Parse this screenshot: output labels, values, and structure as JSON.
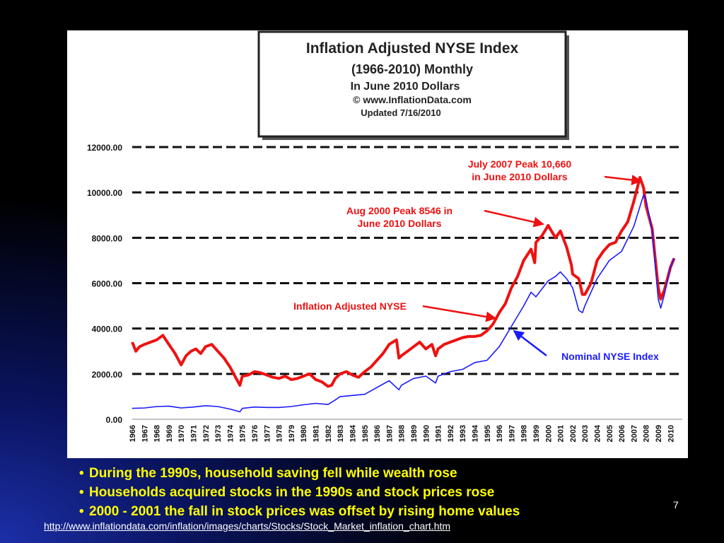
{
  "chart_data": {
    "type": "line",
    "title_lines": [
      "Inflation Adjusted NYSE Index",
      "(1966-2010) Monthly",
      "In June 2010 Dollars",
      "© www.InflationData.com",
      "Updated 7/16/2010"
    ],
    "ylim": [
      0,
      12000
    ],
    "y_ticks": [
      "0.00",
      "2000.00",
      "4000.00",
      "6000.00",
      "8000.00",
      "10000.00",
      "12000.00"
    ],
    "x_ticks": [
      "1966",
      "1967",
      "1968",
      "1969",
      "1970",
      "1971",
      "1972",
      "1973",
      "1974",
      "1975",
      "1976",
      "1977",
      "1978",
      "1979",
      "1980",
      "1981",
      "1982",
      "1983",
      "1984",
      "1985",
      "1986",
      "1987",
      "1988",
      "1989",
      "1990",
      "1991",
      "1992",
      "1993",
      "1994",
      "1995",
      "1996",
      "1997",
      "1998",
      "1999",
      "2000",
      "2001",
      "2002",
      "2003",
      "2004",
      "2005",
      "2006",
      "2007",
      "2008",
      "2009",
      "2010"
    ],
    "grid": "horizontal dashed",
    "series": [
      {
        "name": "Inflation Adjusted NYSE",
        "color": "#ee1111",
        "x": [
          1966,
          1966.3,
          1966.6,
          1967,
          1967.5,
          1968,
          1968.5,
          1969,
          1969.5,
          1970,
          1970.4,
          1970.8,
          1971.2,
          1971.6,
          1972,
          1972.5,
          1973,
          1973.5,
          1974,
          1974.5,
          1974.8,
          1975,
          1975.5,
          1976,
          1976.5,
          1977,
          1977.5,
          1978,
          1978.5,
          1979,
          1979.5,
          1980,
          1980.5,
          1981,
          1981.5,
          1982,
          1982.3,
          1982.6,
          1983,
          1983.5,
          1984,
          1984.5,
          1985,
          1985.5,
          1986,
          1986.5,
          1987,
          1987.6,
          1987.8,
          1988,
          1988.5,
          1989,
          1989.5,
          1990,
          1990.5,
          1990.8,
          1991,
          1991.5,
          1992,
          1992.5,
          1993,
          1993.5,
          1994,
          1994.5,
          1995,
          1995.5,
          1996,
          1996.5,
          1997,
          1997.5,
          1998,
          1998.6,
          1998.9,
          1999,
          1999.5,
          2000,
          2000.6,
          2001,
          2001.5,
          2001.9,
          2002,
          2002.5,
          2002.8,
          2003,
          2003.5,
          2004,
          2004.5,
          2005,
          2005.5,
          2006,
          2006.5,
          2007,
          2007.5,
          2007.8,
          2008,
          2008.5,
          2009,
          2009.2,
          2009.5,
          2010,
          2010.3
        ],
        "values": [
          3400,
          3000,
          3200,
          3300,
          3400,
          3500,
          3700,
          3300,
          2900,
          2400,
          2800,
          3000,
          3100,
          2900,
          3200,
          3300,
          3000,
          2700,
          2300,
          1800,
          1500,
          1900,
          1950,
          2100,
          2050,
          1950,
          1850,
          1800,
          1900,
          1750,
          1800,
          1900,
          2000,
          1750,
          1650,
          1450,
          1500,
          1800,
          2000,
          2100,
          1950,
          1850,
          2100,
          2300,
          2600,
          2900,
          3300,
          3500,
          2700,
          2800,
          3000,
          3200,
          3400,
          3100,
          3300,
          2800,
          3100,
          3300,
          3400,
          3500,
          3600,
          3650,
          3650,
          3700,
          3900,
          4200,
          4700,
          5100,
          5800,
          6300,
          7000,
          7500,
          6900,
          7800,
          8100,
          8546,
          8000,
          8300,
          7600,
          6800,
          6400,
          6200,
          5500,
          5500,
          6000,
          7000,
          7400,
          7700,
          7800,
          8300,
          8700,
          9600,
          10660,
          10200,
          9400,
          8400,
          5800,
          5300,
          5700,
          6700,
          7100
        ]
      },
      {
        "name": "Nominal NYSE Index",
        "color": "#1a1aff",
        "x": [
          1966,
          1967,
          1968,
          1969,
          1970,
          1971,
          1972,
          1973,
          1974,
          1974.8,
          1975,
          1976,
          1977,
          1978,
          1979,
          1980,
          1981,
          1982,
          1982.6,
          1983,
          1984,
          1985,
          1986,
          1987,
          1987.8,
          1988,
          1989,
          1990,
          1990.8,
          1991,
          1992,
          1993,
          1994,
          1995,
          1996,
          1997,
          1998,
          1998.6,
          1999,
          2000,
          2000.6,
          2001,
          2001.5,
          2002,
          2002.5,
          2002.8,
          2003,
          2004,
          2005,
          2006,
          2007,
          2007.8,
          2008,
          2008.5,
          2009,
          2009.2,
          2009.5,
          2010,
          2010.3
        ],
        "values": [
          480,
          500,
          560,
          580,
          500,
          540,
          600,
          560,
          450,
          330,
          480,
          540,
          520,
          520,
          560,
          640,
          700,
          650,
          850,
          1000,
          1050,
          1100,
          1400,
          1700,
          1300,
          1500,
          1800,
          1900,
          1600,
          1900,
          2100,
          2200,
          2500,
          2600,
          3200,
          4100,
          5000,
          5600,
          5400,
          6100,
          6300,
          6500,
          6200,
          5800,
          4800,
          4700,
          5000,
          6200,
          7000,
          7400,
          8500,
          9900,
          9700,
          8300,
          5300,
          4900,
          5500,
          6700,
          7100
        ]
      }
    ],
    "annotations": [
      {
        "text": "July 2007 Peak 10,660",
        "text2": "in June 2010 Dollars",
        "target": [
          2007.6,
          10500
        ]
      },
      {
        "text": "Aug 2000 Peak 8546 in",
        "text2": "June 2010 Dollars",
        "target": [
          1999.6,
          8600
        ]
      },
      {
        "text": "Inflation Adjusted NYSE",
        "text2": "",
        "target": [
          1995.7,
          4450
        ]
      },
      {
        "text": "Nominal NYSE Index",
        "text2": "",
        "target": [
          1997.2,
          3900
        ]
      }
    ]
  },
  "bullets": [
    "During the 1990s, household saving fell while wealth rose",
    "Households acquired stocks in the 1990s and stock prices rose",
    "2000 - 2001 the fall in stock prices was offset by rising home values"
  ],
  "page_number": "7",
  "source_url": "http://www.inflationdata.com/inflation/images/charts/Stocks/Stock_Market_inflation_chart.htm"
}
